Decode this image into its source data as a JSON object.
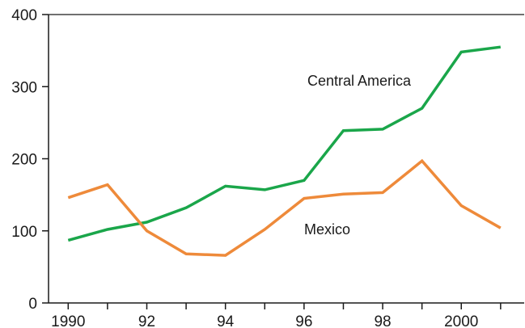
{
  "chart_data": {
    "type": "line",
    "title": "",
    "xlabel": "",
    "ylabel": "",
    "x": [
      1990,
      1991,
      1992,
      1993,
      1994,
      1995,
      1996,
      1997,
      1998,
      1999,
      2000,
      2001
    ],
    "xlim": [
      1989.5,
      2001.6
    ],
    "ylim": [
      0,
      400
    ],
    "y_ticks": [
      0,
      100,
      200,
      300,
      400
    ],
    "y_tick_labels": [
      "0",
      "100",
      "200",
      "300",
      "400"
    ],
    "x_ticks": [
      1990,
      1991,
      1992,
      1993,
      1994,
      1995,
      1996,
      1997,
      1998,
      1999,
      2000,
      2001
    ],
    "x_tick_labels": [
      "1990",
      "92",
      "94",
      "96",
      "98",
      "2000"
    ],
    "x_tick_label_positions": [
      1990,
      1992,
      1994,
      1996,
      1998,
      2000
    ],
    "grid": false,
    "series": [
      {
        "name": "Central America",
        "color": "#1aa64a",
        "values": [
          87,
          102,
          112,
          132,
          162,
          157,
          170,
          239,
          241,
          270,
          348,
          355
        ],
        "label_anchor": [
          1995.5,
          310
        ]
      },
      {
        "name": "Mexico",
        "color": "#ee8a3a",
        "values": [
          146,
          164,
          100,
          68,
          66,
          102,
          145,
          151,
          153,
          197,
          135,
          104
        ]
      }
    ]
  }
}
